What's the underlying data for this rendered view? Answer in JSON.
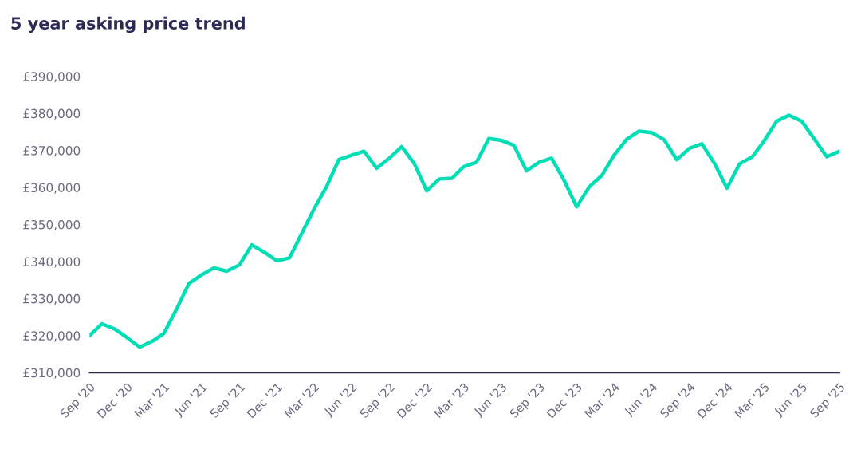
{
  "chart_data": {
    "type": "line",
    "title": "5 year asking price trend",
    "x": [
      "2020-09",
      "2020-10",
      "2020-11",
      "2020-12",
      "2021-01",
      "2021-02",
      "2021-03",
      "2021-04",
      "2021-05",
      "2021-06",
      "2021-07",
      "2021-08",
      "2021-09",
      "2021-10",
      "2021-11",
      "2021-12",
      "2022-01",
      "2022-02",
      "2022-03",
      "2022-04",
      "2022-05",
      "2022-06",
      "2022-07",
      "2022-08",
      "2022-09",
      "2022-10",
      "2022-11",
      "2022-12",
      "2023-01",
      "2023-02",
      "2023-03",
      "2023-04",
      "2023-05",
      "2023-06",
      "2023-07",
      "2023-08",
      "2023-09",
      "2023-10",
      "2023-11",
      "2023-12",
      "2024-01",
      "2024-02",
      "2024-03",
      "2024-04",
      "2024-05",
      "2024-06",
      "2024-07",
      "2024-08",
      "2024-09",
      "2024-10",
      "2024-11",
      "2024-12",
      "2025-01",
      "2025-02",
      "2025-03",
      "2025-04",
      "2025-05",
      "2025-06",
      "2025-07",
      "2025-08",
      "2025-09"
    ],
    "series": [
      {
        "color": "#00deb6",
        "values": [
          320000,
          323200,
          321800,
          319500,
          316900,
          318500,
          320600,
          327200,
          334100,
          336400,
          338300,
          337400,
          339100,
          344500,
          342500,
          340200,
          341000,
          347900,
          354100,
          360200,
          367500,
          368700,
          369800,
          365200,
          367900,
          371000,
          366400,
          359100,
          362300,
          362500,
          365600,
          366800,
          373200,
          372700,
          371400,
          364500,
          366800,
          367900,
          361800,
          354800,
          360200,
          363300,
          368700,
          373000,
          375200,
          374800,
          372900,
          367500,
          370600,
          371800,
          366400,
          359800,
          366400,
          368300,
          372500,
          377900,
          379500,
          377900,
          373200,
          368300,
          369800
        ]
      }
    ],
    "xlim": [
      "2020-09",
      "2025-09"
    ],
    "xticks": [
      {
        "value": "2020-09",
        "label": "Sep '20"
      },
      {
        "value": "2020-12",
        "label": "Dec '20"
      },
      {
        "value": "2021-03",
        "label": "Mar '21"
      },
      {
        "value": "2021-06",
        "label": "Jun '21"
      },
      {
        "value": "2021-09",
        "label": "Sep '21"
      },
      {
        "value": "2021-12",
        "label": "Dec '21"
      },
      {
        "value": "2022-03",
        "label": "Mar '22"
      },
      {
        "value": "2022-06",
        "label": "Jun '22"
      },
      {
        "value": "2022-09",
        "label": "Sep '22"
      },
      {
        "value": "2022-12",
        "label": "Dec '22"
      },
      {
        "value": "2023-03",
        "label": "Mar '23"
      },
      {
        "value": "2023-06",
        "label": "Jun '23"
      },
      {
        "value": "2023-09",
        "label": "Sep '23"
      },
      {
        "value": "2023-12",
        "label": "Dec '23"
      },
      {
        "value": "2024-03",
        "label": "Mar '24"
      },
      {
        "value": "2024-06",
        "label": "Jun '24"
      },
      {
        "value": "2024-09",
        "label": "Sep '24"
      },
      {
        "value": "2024-12",
        "label": "Dec '24"
      },
      {
        "value": "2025-03",
        "label": "Mar '25"
      },
      {
        "value": "2025-06",
        "label": "Jun '25"
      },
      {
        "value": "2025-09",
        "label": "Sep '25"
      }
    ],
    "ylim": [
      310000,
      390000
    ],
    "yticks": [
      {
        "value": 310000,
        "label": "£310,000"
      },
      {
        "value": 320000,
        "label": "£320,000"
      },
      {
        "value": 330000,
        "label": "£330,000"
      },
      {
        "value": 340000,
        "label": "£340,000"
      },
      {
        "value": 350000,
        "label": "£350,000"
      },
      {
        "value": 360000,
        "label": "£360,000"
      },
      {
        "value": 370000,
        "label": "£370,000"
      },
      {
        "value": 380000,
        "label": "£380,000"
      },
      {
        "value": 390000,
        "label": "£390,000"
      }
    ],
    "grid": false,
    "marker": "none",
    "line_style": "solid"
  }
}
